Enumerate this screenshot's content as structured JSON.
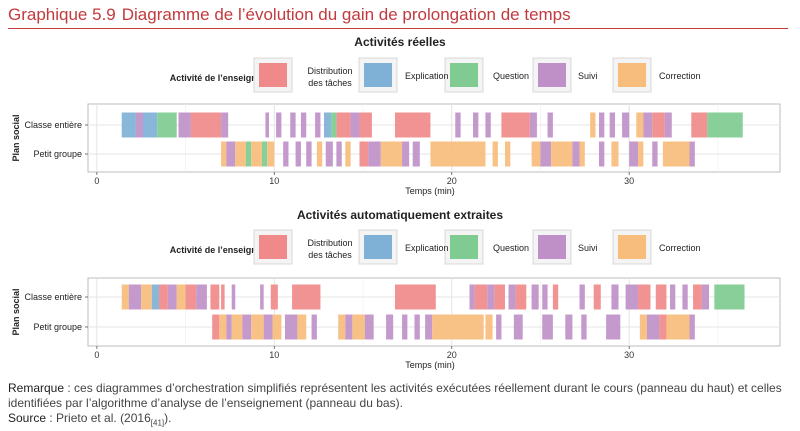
{
  "header": {
    "figure_number": "Graphique 5.9",
    "figure_title": "Diagramme de l’évolution du gain de prolongation de temps"
  },
  "legend": {
    "title": "Activité de l’enseignant",
    "items": [
      {
        "key": "dist",
        "lines": [
          "Distribution",
          "des tâches"
        ],
        "color": "#7fb1d6"
      },
      {
        "key": "expl",
        "lines": [
          "Explication"
        ],
        "color": "#7fcb91"
      },
      {
        "key": "ques",
        "lines": [
          "Question"
        ],
        "color": "#bf90c8"
      },
      {
        "key": "suiv",
        "lines": [
          "Suivi"
        ],
        "color": "#f7bd7c"
      },
      {
        "key": "corr",
        "lines": [
          "Correction"
        ],
        "color": "#f08a8a"
      }
    ]
  },
  "chart_data": [
    {
      "type": "timeline",
      "title": "Activités réelles",
      "xlabel": "Temps (min)",
      "ylabel": "Plan social",
      "xlim": [
        -0.5,
        38.5
      ],
      "xticks": [
        0,
        10,
        20,
        30
      ],
      "rows": [
        "Classe entière",
        "Petit groupe"
      ],
      "segments": {
        "Classe entière": [
          [
            1.4,
            2.2,
            "dist"
          ],
          [
            2.2,
            2.6,
            "ques"
          ],
          [
            2.6,
            3.4,
            "dist"
          ],
          [
            3.4,
            4.5,
            "expl"
          ],
          [
            4.6,
            5.3,
            "ques"
          ],
          [
            5.3,
            7.0,
            "corr"
          ],
          [
            7.0,
            7.4,
            "ques"
          ],
          [
            9.5,
            9.7,
            "ques"
          ],
          [
            10.1,
            10.4,
            "ques"
          ],
          [
            10.9,
            11.2,
            "ques"
          ],
          [
            11.5,
            11.8,
            "ques"
          ],
          [
            12.3,
            12.6,
            "ques"
          ],
          [
            12.8,
            13.2,
            "dist"
          ],
          [
            13.2,
            13.5,
            "expl"
          ],
          [
            13.5,
            14.3,
            "corr"
          ],
          [
            14.3,
            14.8,
            "ques"
          ],
          [
            14.8,
            15.5,
            "corr"
          ],
          [
            16.8,
            18.8,
            "corr"
          ],
          [
            20.2,
            20.5,
            "ques"
          ],
          [
            21.2,
            21.5,
            "ques"
          ],
          [
            21.9,
            22.2,
            "ques"
          ],
          [
            22.8,
            24.4,
            "corr"
          ],
          [
            24.4,
            24.8,
            "ques"
          ],
          [
            25.4,
            25.7,
            "ques"
          ],
          [
            27.8,
            28.1,
            "suiv"
          ],
          [
            28.3,
            28.6,
            "ques"
          ],
          [
            28.9,
            29.2,
            "ques"
          ],
          [
            29.6,
            30.0,
            "ques"
          ],
          [
            30.4,
            30.8,
            "suiv"
          ],
          [
            30.8,
            31.3,
            "ques"
          ],
          [
            31.3,
            32.0,
            "corr"
          ],
          [
            32.0,
            32.4,
            "ques"
          ],
          [
            33.5,
            34.4,
            "corr"
          ],
          [
            34.4,
            36.4,
            "expl"
          ]
        ],
        "Petit groupe": [
          [
            7.0,
            7.3,
            "suiv"
          ],
          [
            7.3,
            7.8,
            "ques"
          ],
          [
            7.8,
            8.4,
            "suiv"
          ],
          [
            8.4,
            8.7,
            "expl"
          ],
          [
            8.7,
            9.3,
            "suiv"
          ],
          [
            9.3,
            9.6,
            "expl"
          ],
          [
            9.6,
            10.0,
            "suiv"
          ],
          [
            10.5,
            10.8,
            "ques"
          ],
          [
            11.2,
            11.5,
            "ques"
          ],
          [
            11.8,
            12.1,
            "ques"
          ],
          [
            12.4,
            12.7,
            "suiv"
          ],
          [
            12.9,
            13.3,
            "ques"
          ],
          [
            13.5,
            13.8,
            "ques"
          ],
          [
            14.0,
            14.3,
            "suiv"
          ],
          [
            14.8,
            15.3,
            "corr"
          ],
          [
            15.3,
            16.0,
            "ques"
          ],
          [
            16.0,
            17.2,
            "suiv"
          ],
          [
            17.2,
            17.6,
            "ques"
          ],
          [
            17.8,
            18.2,
            "ques"
          ],
          [
            18.8,
            21.9,
            "suiv"
          ],
          [
            22.3,
            22.6,
            "suiv"
          ],
          [
            23.0,
            23.3,
            "suiv"
          ],
          [
            24.5,
            25.0,
            "suiv"
          ],
          [
            25.0,
            25.6,
            "ques"
          ],
          [
            25.6,
            26.8,
            "suiv"
          ],
          [
            26.8,
            27.2,
            "ques"
          ],
          [
            27.2,
            27.5,
            "suiv"
          ],
          [
            28.3,
            28.6,
            "ques"
          ],
          [
            29.0,
            29.4,
            "suiv"
          ],
          [
            30.0,
            30.5,
            "ques"
          ],
          [
            30.5,
            30.8,
            "suiv"
          ],
          [
            31.3,
            31.6,
            "ques"
          ],
          [
            31.9,
            33.4,
            "suiv"
          ],
          [
            33.4,
            33.7,
            "ques"
          ]
        ]
      }
    },
    {
      "type": "timeline",
      "title": "Activités automatiquement extraites",
      "xlabel": "Temps (min)",
      "ylabel": "Plan social",
      "xlim": [
        -0.5,
        38.5
      ],
      "xticks": [
        0,
        10,
        20,
        30
      ],
      "rows": [
        "Classe entière",
        "Petit groupe"
      ],
      "segments": {
        "Classe entière": [
          [
            1.4,
            1.8,
            "suiv"
          ],
          [
            1.8,
            2.5,
            "ques"
          ],
          [
            2.5,
            3.1,
            "suiv"
          ],
          [
            3.1,
            3.5,
            "dist"
          ],
          [
            3.5,
            4.0,
            "corr"
          ],
          [
            4.0,
            4.5,
            "ques"
          ],
          [
            4.5,
            5.0,
            "suiv"
          ],
          [
            5.0,
            5.6,
            "corr"
          ],
          [
            5.6,
            6.2,
            "ques"
          ],
          [
            6.4,
            6.9,
            "corr"
          ],
          [
            7.0,
            7.2,
            "corr"
          ],
          [
            7.6,
            7.8,
            "ques"
          ],
          [
            9.2,
            9.4,
            "ques"
          ],
          [
            9.8,
            10.2,
            "corr"
          ],
          [
            11.0,
            12.6,
            "corr"
          ],
          [
            16.8,
            19.1,
            "corr"
          ],
          [
            21.0,
            21.3,
            "ques"
          ],
          [
            21.3,
            22.0,
            "corr"
          ],
          [
            22.0,
            22.4,
            "ques"
          ],
          [
            22.4,
            23.0,
            "corr"
          ],
          [
            23.2,
            23.6,
            "ques"
          ],
          [
            23.6,
            24.2,
            "corr"
          ],
          [
            24.5,
            24.9,
            "ques"
          ],
          [
            25.1,
            25.4,
            "ques"
          ],
          [
            25.7,
            26.0,
            "corr"
          ],
          [
            27.2,
            27.5,
            "ques"
          ],
          [
            28.0,
            28.4,
            "corr"
          ],
          [
            29.0,
            29.4,
            "ques"
          ],
          [
            29.8,
            30.5,
            "ques"
          ],
          [
            30.5,
            31.2,
            "corr"
          ],
          [
            31.5,
            32.1,
            "corr"
          ],
          [
            32.3,
            32.6,
            "ques"
          ],
          [
            33.0,
            33.3,
            "ques"
          ],
          [
            33.6,
            34.1,
            "corr"
          ],
          [
            34.1,
            34.5,
            "ques"
          ],
          [
            34.8,
            36.5,
            "expl"
          ]
        ],
        "Petit groupe": [
          [
            6.5,
            6.9,
            "corr"
          ],
          [
            6.9,
            7.3,
            "suiv"
          ],
          [
            7.3,
            7.6,
            "ques"
          ],
          [
            7.6,
            8.2,
            "suiv"
          ],
          [
            8.2,
            8.7,
            "ques"
          ],
          [
            8.7,
            9.4,
            "suiv"
          ],
          [
            9.4,
            9.9,
            "ques"
          ],
          [
            9.9,
            10.4,
            "suiv"
          ],
          [
            10.6,
            11.3,
            "ques"
          ],
          [
            11.3,
            11.8,
            "suiv"
          ],
          [
            12.1,
            12.4,
            "ques"
          ],
          [
            13.6,
            14.0,
            "suiv"
          ],
          [
            14.0,
            14.4,
            "ques"
          ],
          [
            14.4,
            15.1,
            "suiv"
          ],
          [
            15.1,
            15.6,
            "ques"
          ],
          [
            16.3,
            16.7,
            "ques"
          ],
          [
            17.2,
            17.5,
            "ques"
          ],
          [
            17.9,
            18.2,
            "ques"
          ],
          [
            18.5,
            18.9,
            "ques"
          ],
          [
            18.9,
            20.0,
            "suiv"
          ],
          [
            20.0,
            21.8,
            "suiv"
          ],
          [
            21.9,
            22.3,
            "suiv"
          ],
          [
            22.5,
            22.8,
            "ques"
          ],
          [
            23.5,
            24.0,
            "ques"
          ],
          [
            25.1,
            25.7,
            "ques"
          ],
          [
            26.4,
            26.8,
            "ques"
          ],
          [
            27.3,
            27.6,
            "ques"
          ],
          [
            28.7,
            29.5,
            "ques"
          ],
          [
            30.6,
            31.0,
            "suiv"
          ],
          [
            31.0,
            31.7,
            "ques"
          ],
          [
            31.7,
            32.1,
            "corr"
          ],
          [
            32.1,
            33.4,
            "suiv"
          ],
          [
            33.4,
            33.7,
            "ques"
          ]
        ]
      }
    }
  ],
  "note": {
    "label": "Remarque",
    "text": " : ces diagrammes d’orchestration simplifiés représentent les activités exécutées réellement durant le cours (panneau du haut) et celles identifiées par l’algorithme d’analyse de l’enseignement (panneau du bas)."
  },
  "source": {
    "label": "Source",
    "text": " : Prieto et al. (2016",
    "ref": "[41]",
    "end": ")."
  }
}
